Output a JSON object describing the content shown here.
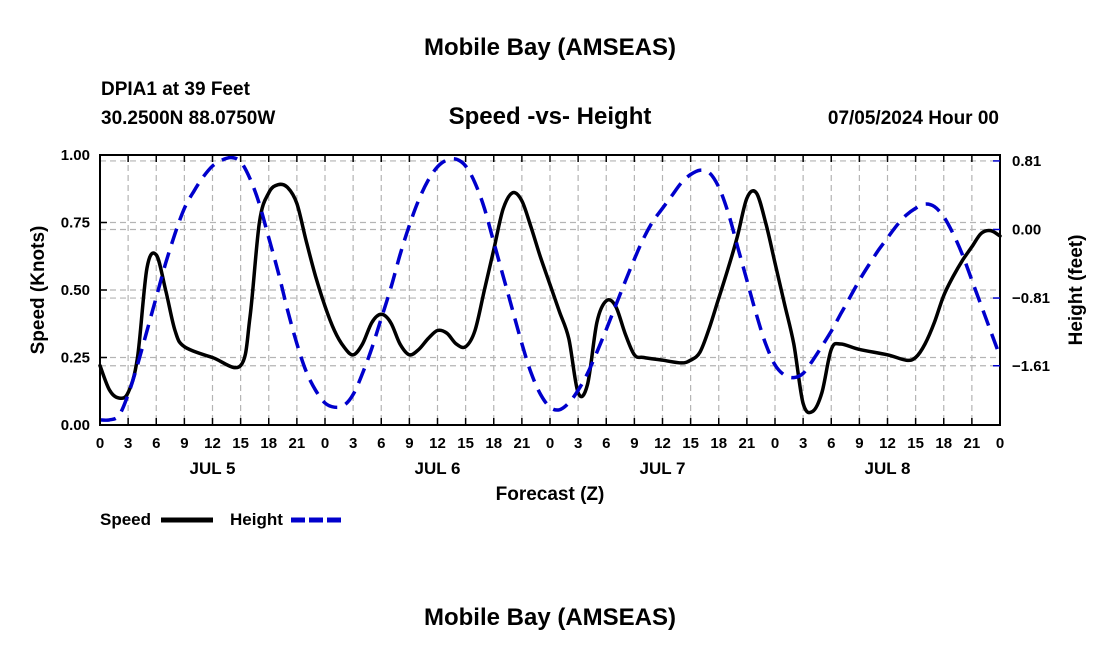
{
  "page_title": "Mobile Bay (AMSEAS)",
  "footer_title": "Mobile Bay (AMSEAS)",
  "station_line": "DPIA1 at 39 Feet",
  "coord_line": "30.2500N  88.0750W",
  "plot_title": "Speed -vs- Height",
  "run_time": "07/05/2024 Hour 00",
  "chart_data": {
    "type": "line",
    "title": "Speed -vs- Height",
    "xlabel": "Forecast (Z)",
    "ylabel": "Speed (Knots)",
    "y2label": "Height (feet)",
    "xlim": [
      0,
      96
    ],
    "ylim": [
      0,
      1
    ],
    "y2lim": [
      -2.31,
      0.88
    ],
    "x_ticks": [
      0,
      3,
      6,
      9,
      12,
      15,
      18,
      21,
      24,
      27,
      30,
      33,
      36,
      39,
      42,
      45,
      48,
      51,
      54,
      57,
      60,
      63,
      66,
      69,
      72,
      75,
      78,
      81,
      84,
      87,
      90,
      93,
      96
    ],
    "x_tick_labels": [
      "0",
      "3",
      "6",
      "9",
      "12",
      "15",
      "18",
      "21",
      "0",
      "3",
      "6",
      "9",
      "12",
      "15",
      "18",
      "21",
      "0",
      "3",
      "6",
      "9",
      "12",
      "15",
      "18",
      "21",
      "0",
      "3",
      "6",
      "9",
      "12",
      "15",
      "18",
      "21",
      "0"
    ],
    "day_labels": [
      {
        "x": 12,
        "label": "JUL 5"
      },
      {
        "x": 36,
        "label": "JUL 6"
      },
      {
        "x": 60,
        "label": "JUL 7"
      },
      {
        "x": 84,
        "label": "JUL 8"
      }
    ],
    "y_ticks": [
      0,
      0.25,
      0.5,
      0.75,
      1.0
    ],
    "y_tick_labels": [
      "0.00",
      "0.25",
      "0.50",
      "0.75",
      "1.00"
    ],
    "y2_ticks": [
      0.81,
      0.0,
      -0.81,
      -1.61
    ],
    "y2_tick_labels": [
      "0.81",
      "0.00",
      "−0.81",
      "−1.61"
    ],
    "grid": true,
    "legend": "bottom-left",
    "series": [
      {
        "name": "Speed",
        "axis": "left",
        "color": "#000000",
        "style": "solid",
        "points": [
          [
            0,
            0.22
          ],
          [
            1,
            0.13
          ],
          [
            2,
            0.1
          ],
          [
            3,
            0.12
          ],
          [
            4,
            0.25
          ],
          [
            5,
            0.58
          ],
          [
            6,
            0.63
          ],
          [
            7,
            0.5
          ],
          [
            8,
            0.35
          ],
          [
            9,
            0.29
          ],
          [
            12,
            0.25
          ],
          [
            15,
            0.22
          ],
          [
            16,
            0.4
          ],
          [
            17,
            0.75
          ],
          [
            18,
            0.86
          ],
          [
            19,
            0.89
          ],
          [
            20,
            0.88
          ],
          [
            21,
            0.82
          ],
          [
            22,
            0.68
          ],
          [
            23,
            0.55
          ],
          [
            24,
            0.44
          ],
          [
            25,
            0.35
          ],
          [
            26,
            0.29
          ],
          [
            27,
            0.26
          ],
          [
            28,
            0.3
          ],
          [
            29,
            0.38
          ],
          [
            30,
            0.41
          ],
          [
            31,
            0.38
          ],
          [
            32,
            0.3
          ],
          [
            33,
            0.26
          ],
          [
            34,
            0.28
          ],
          [
            35,
            0.32
          ],
          [
            36,
            0.35
          ],
          [
            37,
            0.34
          ],
          [
            38,
            0.3
          ],
          [
            39,
            0.29
          ],
          [
            40,
            0.35
          ],
          [
            41,
            0.5
          ],
          [
            42,
            0.65
          ],
          [
            43,
            0.8
          ],
          [
            44,
            0.86
          ],
          [
            45,
            0.83
          ],
          [
            46,
            0.73
          ],
          [
            47,
            0.62
          ],
          [
            48,
            0.52
          ],
          [
            49,
            0.42
          ],
          [
            50,
            0.32
          ],
          [
            51,
            0.12
          ],
          [
            52,
            0.15
          ],
          [
            53,
            0.38
          ],
          [
            54,
            0.46
          ],
          [
            55,
            0.44
          ],
          [
            56,
            0.34
          ],
          [
            57,
            0.26
          ],
          [
            58,
            0.25
          ],
          [
            60,
            0.24
          ],
          [
            62,
            0.23
          ],
          [
            63,
            0.24
          ],
          [
            64,
            0.27
          ],
          [
            65,
            0.36
          ],
          [
            66,
            0.47
          ],
          [
            67,
            0.58
          ],
          [
            68,
            0.7
          ],
          [
            69,
            0.84
          ],
          [
            70,
            0.86
          ],
          [
            71,
            0.75
          ],
          [
            72,
            0.6
          ],
          [
            73,
            0.45
          ],
          [
            74,
            0.3
          ],
          [
            75,
            0.08
          ],
          [
            76,
            0.05
          ],
          [
            77,
            0.12
          ],
          [
            78,
            0.28
          ],
          [
            79,
            0.3
          ],
          [
            81,
            0.28
          ],
          [
            84,
            0.26
          ],
          [
            86,
            0.24
          ],
          [
            87,
            0.25
          ],
          [
            88,
            0.3
          ],
          [
            89,
            0.38
          ],
          [
            90,
            0.48
          ],
          [
            91,
            0.55
          ],
          [
            92,
            0.61
          ],
          [
            93,
            0.66
          ],
          [
            94,
            0.71
          ],
          [
            95,
            0.72
          ],
          [
            96,
            0.7
          ]
        ]
      },
      {
        "name": "Height",
        "axis": "right",
        "color": "#0000cc",
        "style": "dashed",
        "points": [
          [
            0,
            -2.25
          ],
          [
            1,
            -2.25
          ],
          [
            2,
            -2.2
          ],
          [
            3,
            -1.95
          ],
          [
            4,
            -1.6
          ],
          [
            5,
            -1.2
          ],
          [
            6,
            -0.8
          ],
          [
            7,
            -0.4
          ],
          [
            8,
            -0.05
          ],
          [
            9,
            0.25
          ],
          [
            10,
            0.45
          ],
          [
            11,
            0.62
          ],
          [
            12,
            0.75
          ],
          [
            13,
            0.82
          ],
          [
            14,
            0.85
          ],
          [
            15,
            0.8
          ],
          [
            16,
            0.6
          ],
          [
            17,
            0.3
          ],
          [
            18,
            -0.1
          ],
          [
            19,
            -0.5
          ],
          [
            20,
            -0.95
          ],
          [
            21,
            -1.35
          ],
          [
            22,
            -1.68
          ],
          [
            23,
            -1.9
          ],
          [
            24,
            -2.05
          ],
          [
            25,
            -2.1
          ],
          [
            26,
            -2.08
          ],
          [
            27,
            -1.95
          ],
          [
            28,
            -1.7
          ],
          [
            29,
            -1.4
          ],
          [
            30,
            -1.05
          ],
          [
            31,
            -0.7
          ],
          [
            32,
            -0.3
          ],
          [
            33,
            0.05
          ],
          [
            34,
            0.35
          ],
          [
            35,
            0.58
          ],
          [
            36,
            0.74
          ],
          [
            37,
            0.82
          ],
          [
            38,
            0.83
          ],
          [
            39,
            0.75
          ],
          [
            40,
            0.55
          ],
          [
            41,
            0.25
          ],
          [
            42,
            -0.15
          ],
          [
            43,
            -0.55
          ],
          [
            44,
            -0.95
          ],
          [
            45,
            -1.35
          ],
          [
            46,
            -1.7
          ],
          [
            47,
            -1.95
          ],
          [
            48,
            -2.1
          ],
          [
            49,
            -2.13
          ],
          [
            50,
            -2.05
          ],
          [
            51,
            -1.9
          ],
          [
            52,
            -1.7
          ],
          [
            53,
            -1.45
          ],
          [
            54,
            -1.18
          ],
          [
            55,
            -0.9
          ],
          [
            56,
            -0.62
          ],
          [
            57,
            -0.35
          ],
          [
            58,
            -0.1
          ],
          [
            59,
            0.1
          ],
          [
            60,
            0.25
          ],
          [
            61,
            0.4
          ],
          [
            62,
            0.55
          ],
          [
            63,
            0.65
          ],
          [
            64,
            0.7
          ],
          [
            65,
            0.67
          ],
          [
            66,
            0.5
          ],
          [
            67,
            0.2
          ],
          [
            68,
            -0.2
          ],
          [
            69,
            -0.6
          ],
          [
            70,
            -1.0
          ],
          [
            71,
            -1.35
          ],
          [
            72,
            -1.6
          ],
          [
            73,
            -1.72
          ],
          [
            74,
            -1.75
          ],
          [
            75,
            -1.7
          ],
          [
            76,
            -1.55
          ],
          [
            77,
            -1.38
          ],
          [
            78,
            -1.2
          ],
          [
            79,
            -1.0
          ],
          [
            80,
            -0.8
          ],
          [
            81,
            -0.6
          ],
          [
            82,
            -0.42
          ],
          [
            83,
            -0.25
          ],
          [
            84,
            -0.1
          ],
          [
            85,
            0.05
          ],
          [
            86,
            0.17
          ],
          [
            87,
            0.25
          ],
          [
            88,
            0.3
          ],
          [
            89,
            0.27
          ],
          [
            90,
            0.15
          ],
          [
            91,
            -0.05
          ],
          [
            92,
            -0.3
          ],
          [
            93,
            -0.6
          ],
          [
            94,
            -0.9
          ],
          [
            95,
            -1.2
          ],
          [
            96,
            -1.5
          ]
        ]
      }
    ],
    "legend_entries": [
      "Speed",
      "Height"
    ]
  }
}
